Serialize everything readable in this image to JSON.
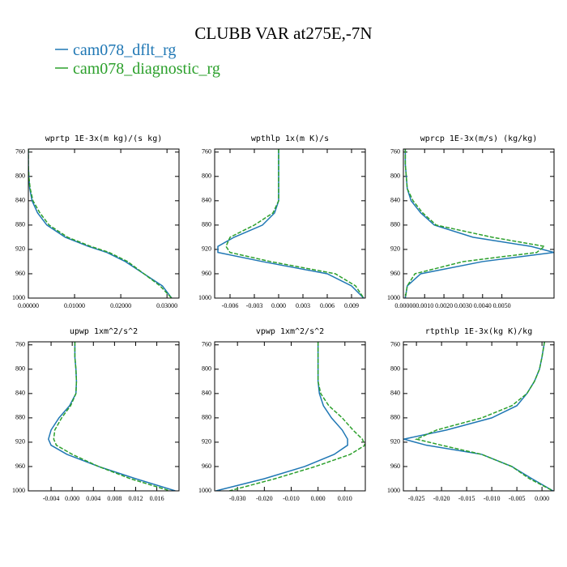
{
  "title": "CLUBB VAR at275E,-7N",
  "chart_data": [
    {
      "type": "line",
      "title": "wprtp  1E-3x(m kg)/(s kg)",
      "y": [
        755,
        780,
        800,
        820,
        840,
        860,
        880,
        900,
        915,
        925,
        940,
        960,
        980,
        1000
      ],
      "ylim": [
        1000,
        755
      ],
      "yticks": [
        760,
        800,
        840,
        880,
        920,
        960,
        1000
      ],
      "xlim": [
        0,
        0.0326
      ],
      "xticks": [
        {
          "value": 0,
          "label": "0.00000"
        },
        {
          "value": 0.01,
          "label": "0.01000"
        },
        {
          "value": 0.02,
          "label": "0.02000"
        },
        {
          "value": 0.03,
          "label": "0.03000"
        }
      ],
      "series": [
        {
          "name": "cam078_dflt_rg",
          "color": "#1f77b4",
          "linestyle": "solid",
          "values": [
            0,
            0,
            0.0001,
            0.0003,
            0.0008,
            0.002,
            0.004,
            0.008,
            0.013,
            0.017,
            0.021,
            0.025,
            0.029,
            0.031
          ]
        },
        {
          "name": "cam078_diagnostic_rg",
          "color": "#2ca02c",
          "linestyle": "dashed",
          "values": [
            0,
            0,
            0.0001,
            0.0004,
            0.001,
            0.0025,
            0.0045,
            0.0085,
            0.0135,
            0.0175,
            0.0215,
            0.025,
            0.0285,
            0.031
          ]
        }
      ]
    },
    {
      "type": "line",
      "title": "wpthlp  1x(m K)/s",
      "y": [
        755,
        780,
        800,
        820,
        840,
        860,
        880,
        900,
        915,
        925,
        940,
        960,
        980,
        1000
      ],
      "ylim": [
        1000,
        755
      ],
      "yticks": [
        760,
        800,
        840,
        880,
        920,
        960,
        1000
      ],
      "xlim": [
        -0.0079,
        0.0107
      ],
      "xticks": [
        -0.006,
        -0.003,
        {
          "value": 0,
          "label": "0.000"
        },
        0.003,
        0.006,
        0.009
      ],
      "series": [
        {
          "name": "cam078_dflt_rg",
          "color": "#1f77b4",
          "linestyle": "solid",
          "values": [
            0,
            0,
            0,
            0,
            0,
            -0.0005,
            -0.002,
            -0.0055,
            -0.0075,
            -0.0075,
            -0.002,
            0.006,
            0.009,
            0.0105
          ]
        },
        {
          "name": "cam078_diagnostic_rg",
          "color": "#2ca02c",
          "linestyle": "dashed",
          "values": [
            0,
            0,
            0,
            0,
            0,
            -0.0007,
            -0.003,
            -0.006,
            -0.0065,
            -0.006,
            -0.001,
            0.007,
            0.0095,
            0.0105
          ]
        }
      ]
    },
    {
      "type": "line",
      "title": "wprcp  1E-3x(m/s) (kg/kg)",
      "y": [
        755,
        780,
        800,
        820,
        840,
        860,
        880,
        900,
        915,
        925,
        940,
        960,
        980,
        1000
      ],
      "ylim": [
        1000,
        755
      ],
      "yticks": [
        760,
        800,
        840,
        880,
        920,
        960,
        1000
      ],
      "xlim": [
        -0.0001,
        0.0077
      ],
      "xticks": [
        {
          "value": 0,
          "label": "0.00000"
        },
        {
          "value": 0.001,
          "label": "0.0010"
        },
        {
          "value": 0.002,
          "label": "0.0020"
        },
        {
          "value": 0.003,
          "label": "0.0030"
        },
        {
          "value": 0.004,
          "label": "0.0040"
        },
        {
          "value": 0.005,
          "label": "0.0050"
        }
      ],
      "series": [
        {
          "name": "cam078_dflt_rg",
          "color": "#1f77b4",
          "linestyle": "solid",
          "values": [
            0,
            0,
            5e-05,
            0.0001,
            0.0003,
            0.0008,
            0.0015,
            0.0035,
            0.0065,
            0.0077,
            0.004,
            0.0008,
            0.0001,
            0
          ]
        },
        {
          "name": "cam078_diagnostic_rg",
          "color": "#2ca02c",
          "linestyle": "dashed",
          "values": [
            0,
            0,
            5e-05,
            0.0001,
            0.0004,
            0.0009,
            0.0016,
            0.0045,
            0.0072,
            0.0068,
            0.003,
            0.0005,
            0.0001,
            0
          ]
        }
      ]
    },
    {
      "type": "line",
      "title": "upwp  1xm^2/s^2",
      "y": [
        755,
        780,
        800,
        820,
        840,
        860,
        880,
        900,
        915,
        925,
        940,
        960,
        980,
        1000
      ],
      "ylim": [
        1000,
        755
      ],
      "yticks": [
        760,
        800,
        840,
        880,
        920,
        960,
        1000
      ],
      "xlim": [
        -0.0083,
        0.0202
      ],
      "xticks": [
        -0.004,
        {
          "value": 0,
          "label": "0.000"
        },
        0.004,
        0.008,
        0.012,
        0.016
      ],
      "series": [
        {
          "name": "cam078_dflt_rg",
          "color": "#1f77b4",
          "linestyle": "solid",
          "values": [
            0.0005,
            0.0005,
            0.0007,
            0.0008,
            0.0007,
            -0.0005,
            -0.0025,
            -0.004,
            -0.0045,
            -0.004,
            -0.001,
            0.005,
            0.012,
            0.0195
          ]
        },
        {
          "name": "cam078_diagnostic_rg",
          "color": "#2ca02c",
          "linestyle": "dashed",
          "values": [
            0.0005,
            0.0005,
            0.0007,
            0.0008,
            0.0007,
            -0.0003,
            -0.002,
            -0.0033,
            -0.0035,
            -0.003,
            0,
            0.005,
            0.011,
            0.0185
          ]
        }
      ]
    },
    {
      "type": "line",
      "title": "vpwp  1xm^2/s^2",
      "y": [
        755,
        780,
        800,
        820,
        840,
        860,
        880,
        900,
        915,
        925,
        940,
        960,
        980,
        1000
      ],
      "ylim": [
        1000,
        755
      ],
      "yticks": [
        760,
        800,
        840,
        880,
        920,
        960,
        1000
      ],
      "xlim": [
        -0.0385,
        0.0176
      ],
      "xticks": [
        {
          "value": -0.03,
          "label": "-0.030"
        },
        {
          "value": -0.02,
          "label": "-0.020"
        },
        {
          "value": -0.01,
          "label": "-0.010"
        },
        {
          "value": 0,
          "label": "0.000"
        },
        {
          "value": 0.01,
          "label": "0.010"
        }
      ],
      "series": [
        {
          "name": "cam078_dflt_rg",
          "color": "#1f77b4",
          "linestyle": "solid",
          "values": [
            0,
            0,
            0,
            0,
            0.0005,
            0.002,
            0.005,
            0.009,
            0.011,
            0.011,
            0.006,
            -0.005,
            -0.02,
            -0.038
          ]
        },
        {
          "name": "cam078_diagnostic_rg",
          "color": "#2ca02c",
          "linestyle": "dashed",
          "values": [
            0,
            0,
            0,
            0,
            0.001,
            0.004,
            0.009,
            0.013,
            0.0165,
            0.0175,
            0.012,
            -0.001,
            -0.016,
            -0.033
          ]
        }
      ]
    },
    {
      "type": "line",
      "title": "rtpthlp  1E-3x(kg K)/kg",
      "y": [
        755,
        780,
        800,
        820,
        840,
        860,
        880,
        900,
        915,
        925,
        940,
        960,
        980,
        1000
      ],
      "ylim": [
        1000,
        755
      ],
      "yticks": [
        760,
        800,
        840,
        880,
        920,
        960,
        1000
      ],
      "xlim": [
        -0.0276,
        0.0024
      ],
      "xticks": [
        -0.025,
        {
          "value": -0.02,
          "label": "-0.020"
        },
        -0.015,
        {
          "value": -0.01,
          "label": "-0.010"
        },
        -0.005,
        {
          "value": 0,
          "label": "0.000"
        }
      ],
      "series": [
        {
          "name": "cam078_dflt_rg",
          "color": "#1f77b4",
          "linestyle": "solid",
          "values": [
            0.0005,
            0,
            -0.0005,
            -0.0015,
            -0.003,
            -0.005,
            -0.01,
            -0.019,
            -0.0275,
            -0.023,
            -0.012,
            -0.006,
            -0.002,
            0.0022
          ]
        },
        {
          "name": "cam078_diagnostic_rg",
          "color": "#2ca02c",
          "linestyle": "dashed",
          "values": [
            0.0005,
            0,
            -0.0005,
            -0.0015,
            -0.003,
            -0.006,
            -0.012,
            -0.021,
            -0.025,
            -0.02,
            -0.012,
            -0.006,
            -0.0025,
            0.0022
          ]
        }
      ]
    }
  ]
}
